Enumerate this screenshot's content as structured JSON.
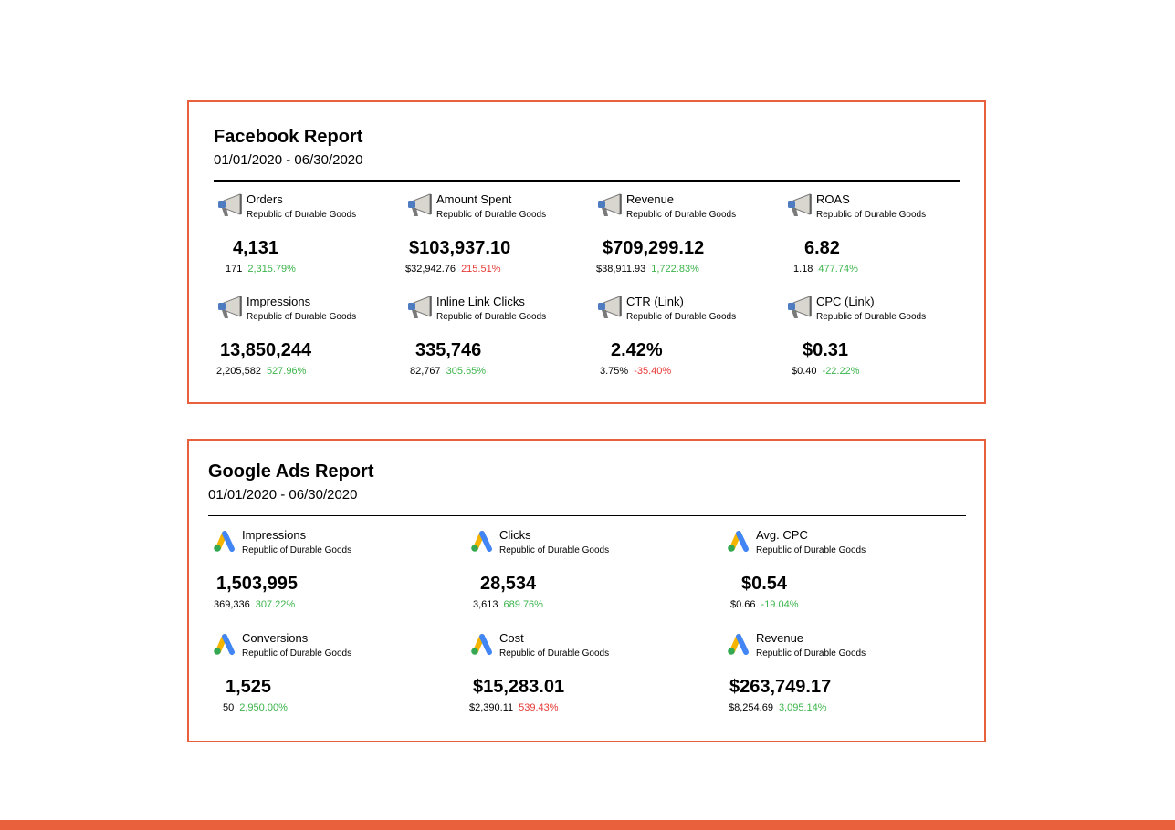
{
  "facebook": {
    "title": "Facebook Report",
    "date_range": "01/01/2020 - 06/30/2020",
    "metrics": [
      {
        "name": "Orders",
        "account": "Republic of Durable Goods",
        "value": "4,131",
        "previous": "171",
        "change": "2,315.79%",
        "trend": "positive"
      },
      {
        "name": "Amount Spent",
        "account": "Republic of Durable Goods",
        "value": "$103,937.10",
        "previous": "$32,942.76",
        "change": "215.51%",
        "trend": "negative"
      },
      {
        "name": "Revenue",
        "account": "Republic of Durable Goods",
        "value": "$709,299.12",
        "previous": "$38,911.93",
        "change": "1,722.83%",
        "trend": "positive"
      },
      {
        "name": "ROAS",
        "account": "Republic of Durable Goods",
        "value": "6.82",
        "previous": "1.18",
        "change": "477.74%",
        "trend": "positive"
      },
      {
        "name": "Impressions",
        "account": "Republic of Durable Goods",
        "value": "13,850,244",
        "previous": "2,205,582",
        "change": "527.96%",
        "trend": "positive"
      },
      {
        "name": "Inline Link Clicks",
        "account": "Republic of Durable Goods",
        "value": "335,746",
        "previous": "82,767",
        "change": "305.65%",
        "trend": "positive"
      },
      {
        "name": "CTR (Link)",
        "account": "Republic of Durable Goods",
        "value": "2.42%",
        "previous": "3.75%",
        "change": "-35.40%",
        "trend": "negative"
      },
      {
        "name": "CPC (Link)",
        "account": "Republic of Durable Goods",
        "value": "$0.31",
        "previous": "$0.40",
        "change": "-22.22%",
        "trend": "positive"
      }
    ],
    "icon": "megaphone-icon"
  },
  "google_ads": {
    "title": "Google Ads Report",
    "date_range": "01/01/2020 - 06/30/2020",
    "metrics": [
      {
        "name": "Impressions",
        "account": "Republic of Durable Goods",
        "value": "1,503,995",
        "previous": "369,336",
        "change": "307.22%",
        "trend": "positive"
      },
      {
        "name": "Clicks",
        "account": "Republic of Durable Goods",
        "value": "28,534",
        "previous": "3,613",
        "change": "689.76%",
        "trend": "positive"
      },
      {
        "name": "Avg. CPC",
        "account": "Republic of Durable Goods",
        "value": "$0.54",
        "previous": "$0.66",
        "change": "-19.04%",
        "trend": "positive"
      },
      {
        "name": "Conversions",
        "account": "Republic of Durable Goods",
        "value": "1,525",
        "previous": "50",
        "change": "2,950.00%",
        "trend": "positive"
      },
      {
        "name": "Cost",
        "account": "Republic of Durable Goods",
        "value": "$15,283.01",
        "previous": "$2,390.11",
        "change": "539.43%",
        "trend": "negative"
      },
      {
        "name": "Revenue",
        "account": "Republic of Durable Goods",
        "value": "$263,749.17",
        "previous": "$8,254.69",
        "change": "3,095.14%",
        "trend": "positive"
      }
    ],
    "icon": "google-ads-icon"
  },
  "colors": {
    "accent": "#e8613c",
    "positive": "#3cb44b",
    "negative": "#e53935"
  }
}
